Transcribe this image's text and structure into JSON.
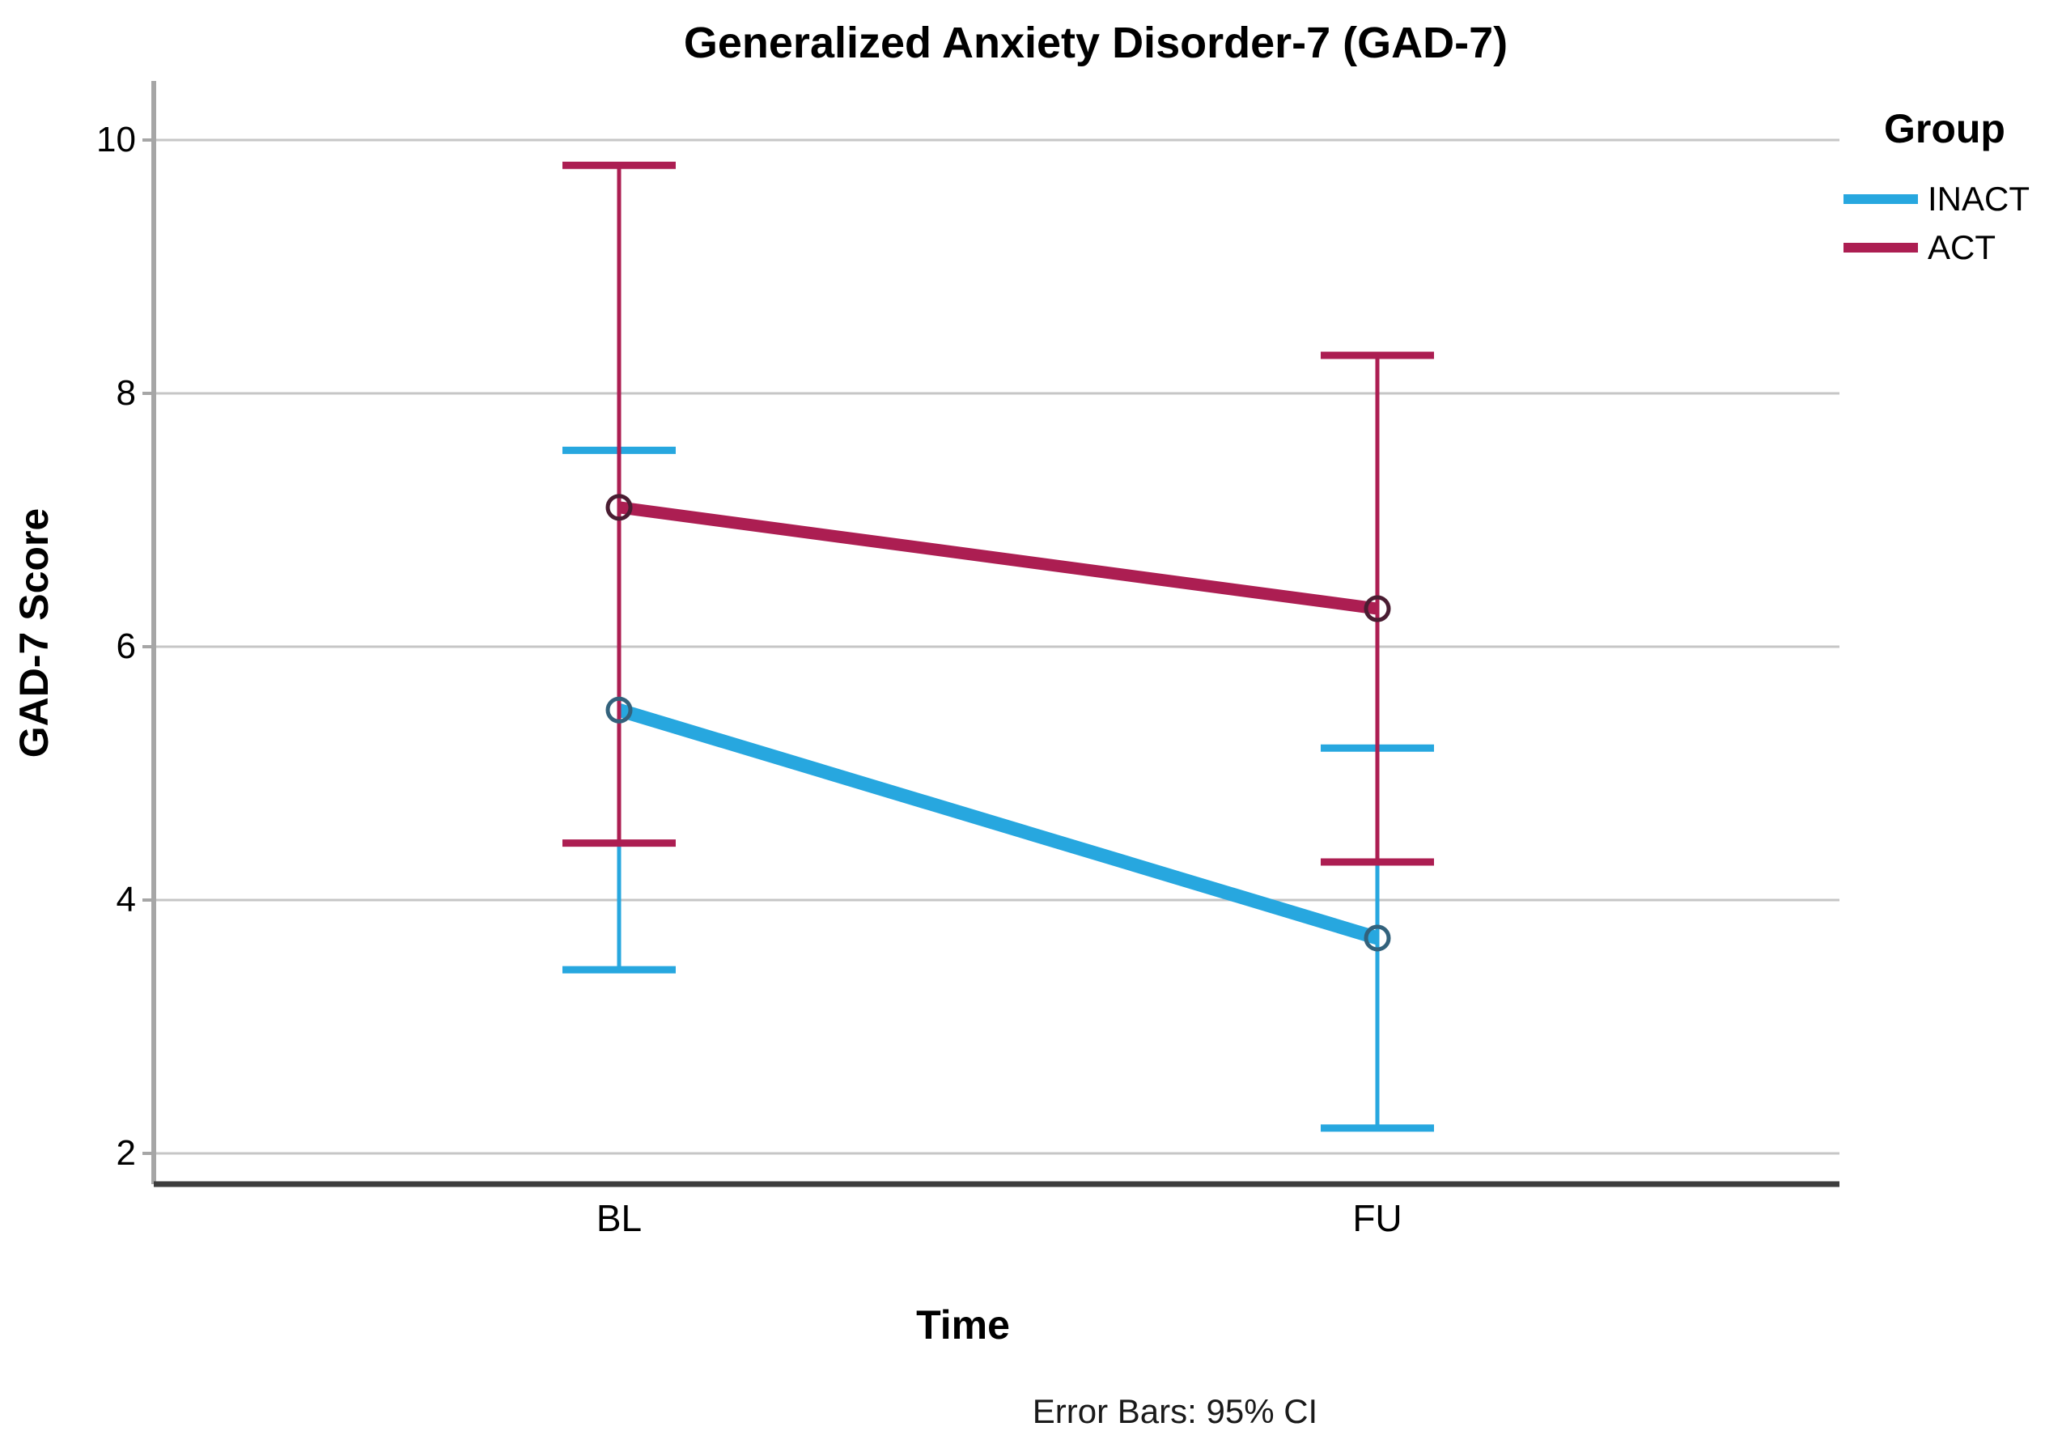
{
  "title": "Generalized Anxiety Disorder-7 (GAD-7)",
  "footnote": "Error Bars: 95% CI",
  "axes": {
    "x_label": "Time",
    "y_label": "GAD-7 Score"
  },
  "legend": {
    "title": "Group"
  },
  "colors": {
    "inact": "#27A7DF",
    "act": "#AC1E52",
    "gridline": "#C6C6C6",
    "y_axis_line": "#A6A6A6",
    "x_axis_line": "#3D3D3D",
    "inact_marker_outline": "#33627C",
    "act_marker_outline": "#4A1D32"
  },
  "chart_data": {
    "type": "line",
    "title": "Generalized Anxiety Disorder-7 (GAD-7)",
    "xlabel": "Time",
    "ylabel": "GAD-7 Score",
    "categories": [
      "BL",
      "FU"
    ],
    "y_ticks": [
      10,
      8,
      6,
      4,
      2
    ],
    "ylim": [
      1.75,
      10.47
    ],
    "grid": true,
    "error_bars": "95% CI",
    "legend_position": "top-right",
    "series": [
      {
        "name": "INACT",
        "color": "#27A7DF",
        "values": [
          5.5,
          3.7
        ],
        "ci_low": [
          3.45,
          2.2
        ],
        "ci_high": [
          7.55,
          5.2
        ]
      },
      {
        "name": "ACT",
        "color": "#AC1E52",
        "values": [
          7.1,
          6.3
        ],
        "ci_low": [
          4.45,
          4.3
        ],
        "ci_high": [
          9.8,
          8.3
        ]
      }
    ]
  }
}
